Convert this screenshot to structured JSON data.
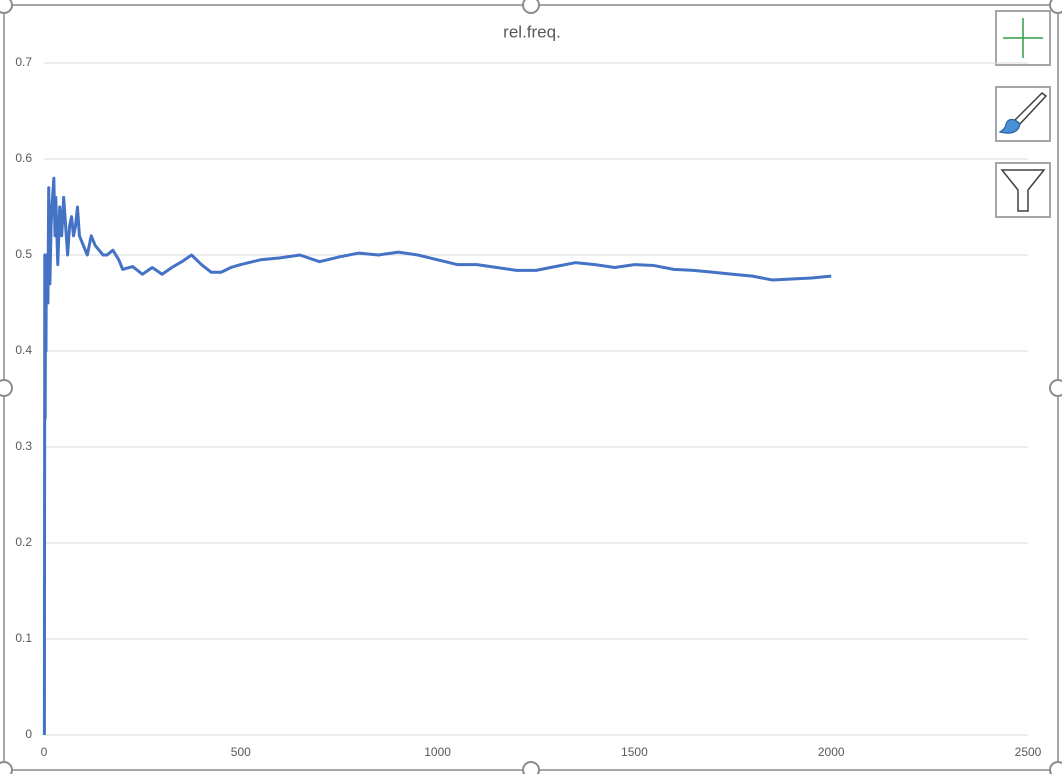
{
  "chart_data": {
    "type": "line",
    "title": "rel.freq.",
    "x": [
      1,
      2,
      3,
      4,
      5,
      6,
      8,
      10,
      12,
      15,
      18,
      20,
      25,
      28,
      30,
      35,
      40,
      45,
      50,
      55,
      60,
      65,
      70,
      75,
      80,
      85,
      90,
      100,
      110,
      120,
      130,
      140,
      150,
      160,
      175,
      190,
      200,
      225,
      250,
      275,
      300,
      325,
      350,
      375,
      400,
      425,
      450,
      475,
      500,
      550,
      600,
      650,
      700,
      750,
      800,
      850,
      900,
      950,
      1000,
      1050,
      1100,
      1150,
      1200,
      1250,
      1300,
      1350,
      1400,
      1450,
      1500,
      1550,
      1600,
      1650,
      1700,
      1750,
      1800,
      1850,
      1900,
      1950,
      2000
    ],
    "series": [
      {
        "name": "rel.freq.",
        "color": "#4472c4",
        "values": [
          0,
          0.5,
          0.33,
          0.5,
          0.4,
          0.5,
          0.5,
          0.45,
          0.57,
          0.47,
          0.53,
          0.55,
          0.58,
          0.52,
          0.56,
          0.49,
          0.55,
          0.52,
          0.56,
          0.53,
          0.5,
          0.53,
          0.54,
          0.52,
          0.53,
          0.55,
          0.52,
          0.51,
          0.5,
          0.52,
          0.51,
          0.505,
          0.5,
          0.5,
          0.505,
          0.495,
          0.485,
          0.488,
          0.48,
          0.487,
          0.48,
          0.487,
          0.493,
          0.5,
          0.49,
          0.482,
          0.482,
          0.487,
          0.49,
          0.495,
          0.497,
          0.5,
          0.493,
          0.498,
          0.502,
          0.5,
          0.503,
          0.5,
          0.495,
          0.49,
          0.49,
          0.487,
          0.484,
          0.484,
          0.488,
          0.492,
          0.49,
          0.487,
          0.49,
          0.489,
          0.485,
          0.484,
          0.482,
          0.48,
          0.478,
          0.474,
          0.475,
          0.476,
          0.478
        ]
      }
    ],
    "xlim": [
      0,
      2500
    ],
    "xticks": [
      0,
      500,
      1000,
      1500,
      2000,
      2500
    ],
    "ylim": [
      0,
      0.7
    ],
    "yticks": [
      0,
      0.1,
      0.2,
      0.3,
      0.4,
      0.5,
      0.6,
      0.7
    ],
    "grid": true
  }
}
